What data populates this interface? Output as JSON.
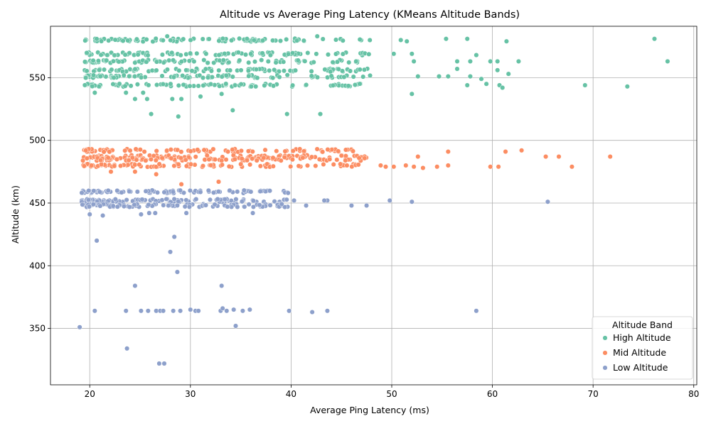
{
  "chart_data": {
    "type": "scatter",
    "title": "Altitude vs Average Ping Latency (KMeans Altitude Bands)",
    "xlabel": "Average Ping Latency (ms)",
    "ylabel": "Altitude (km)",
    "xlim": [
      16.1,
      80.3
    ],
    "ylim": [
      305,
      591
    ],
    "xticks": [
      20,
      30,
      40,
      50,
      60,
      70,
      80
    ],
    "yticks": [
      350,
      400,
      450,
      500,
      550
    ],
    "grid": true,
    "legend": {
      "title": "Altitude Band",
      "placement": "lower-right"
    },
    "series": [
      {
        "name": "High Altitude",
        "color": "#66c2a5",
        "bands": [
          580,
          569,
          563,
          556,
          551,
          544
        ],
        "main_x_range": [
          19.5,
          48
        ],
        "points": [
          {
            "x": 27.7,
            "y": 583
          },
          {
            "x": 42.6,
            "y": 583
          },
          {
            "x": 76.1,
            "y": 581
          },
          {
            "x": 55.4,
            "y": 581
          },
          {
            "x": 57.5,
            "y": 581
          },
          {
            "x": 50.9,
            "y": 580
          },
          {
            "x": 61.4,
            "y": 579
          },
          {
            "x": 51.5,
            "y": 579
          },
          {
            "x": 58.4,
            "y": 568
          },
          {
            "x": 56.5,
            "y": 563
          },
          {
            "x": 57.8,
            "y": 563
          },
          {
            "x": 59.8,
            "y": 563
          },
          {
            "x": 60.5,
            "y": 563
          },
          {
            "x": 62.6,
            "y": 563
          },
          {
            "x": 77.4,
            "y": 563
          },
          {
            "x": 56.5,
            "y": 557
          },
          {
            "x": 60.5,
            "y": 556
          },
          {
            "x": 61.6,
            "y": 553
          },
          {
            "x": 57.8,
            "y": 551
          },
          {
            "x": 58.9,
            "y": 549
          },
          {
            "x": 60.7,
            "y": 544
          },
          {
            "x": 61.0,
            "y": 542
          },
          {
            "x": 69.2,
            "y": 544
          },
          {
            "x": 73.4,
            "y": 543
          },
          {
            "x": 57.5,
            "y": 544
          },
          {
            "x": 59.4,
            "y": 545
          },
          {
            "x": 52.0,
            "y": 537
          },
          {
            "x": 20.5,
            "y": 538
          },
          {
            "x": 25.3,
            "y": 538
          },
          {
            "x": 23.6,
            "y": 538
          },
          {
            "x": 24.5,
            "y": 533
          },
          {
            "x": 25.7,
            "y": 533
          },
          {
            "x": 28.2,
            "y": 533
          },
          {
            "x": 29.1,
            "y": 533
          },
          {
            "x": 31.0,
            "y": 535
          },
          {
            "x": 33.1,
            "y": 537
          },
          {
            "x": 34.2,
            "y": 524
          },
          {
            "x": 26.1,
            "y": 521
          },
          {
            "x": 28.8,
            "y": 519
          },
          {
            "x": 39.6,
            "y": 521
          },
          {
            "x": 42.9,
            "y": 521
          },
          {
            "x": 52.2,
            "y": 563
          },
          {
            "x": 52.6,
            "y": 551
          },
          {
            "x": 54.7,
            "y": 551
          },
          {
            "x": 55.6,
            "y": 551
          },
          {
            "x": 50.2,
            "y": 569
          },
          {
            "x": 52.0,
            "y": 569
          }
        ]
      },
      {
        "name": "Mid Altitude",
        "color": "#fc8d62",
        "bands": [
          492,
          487,
          485,
          480
        ],
        "main_x_range": [
          19.3,
          47.5
        ],
        "points": [
          {
            "x": 62.9,
            "y": 492
          },
          {
            "x": 61.3,
            "y": 491
          },
          {
            "x": 55.6,
            "y": 491
          },
          {
            "x": 52.6,
            "y": 487
          },
          {
            "x": 65.3,
            "y": 487
          },
          {
            "x": 66.6,
            "y": 487
          },
          {
            "x": 71.7,
            "y": 487
          },
          {
            "x": 59.8,
            "y": 479
          },
          {
            "x": 60.6,
            "y": 479
          },
          {
            "x": 67.9,
            "y": 479
          },
          {
            "x": 55.6,
            "y": 480
          },
          {
            "x": 54.5,
            "y": 479
          },
          {
            "x": 53.1,
            "y": 478
          },
          {
            "x": 52.2,
            "y": 479
          },
          {
            "x": 51.4,
            "y": 480
          },
          {
            "x": 50.2,
            "y": 479
          },
          {
            "x": 49.4,
            "y": 479
          },
          {
            "x": 48.9,
            "y": 480
          },
          {
            "x": 29.1,
            "y": 465
          },
          {
            "x": 32.8,
            "y": 467
          },
          {
            "x": 26.6,
            "y": 473
          },
          {
            "x": 22.1,
            "y": 475
          },
          {
            "x": 24.5,
            "y": 475
          }
        ]
      },
      {
        "name": "Low Altitude",
        "color": "#8da0cb",
        "bands": [
          459,
          452,
          448
        ],
        "main_x_range": [
          19.2,
          40
        ],
        "points": [
          {
            "x": 65.5,
            "y": 451
          },
          {
            "x": 58.4,
            "y": 364
          },
          {
            "x": 52.0,
            "y": 451
          },
          {
            "x": 49.8,
            "y": 452
          },
          {
            "x": 47.5,
            "y": 448
          },
          {
            "x": 46.0,
            "y": 448
          },
          {
            "x": 43.6,
            "y": 452
          },
          {
            "x": 43.3,
            "y": 452
          },
          {
            "x": 41.5,
            "y": 448
          },
          {
            "x": 40.3,
            "y": 452
          },
          {
            "x": 36.2,
            "y": 442
          },
          {
            "x": 33.9,
            "y": 460
          },
          {
            "x": 36.0,
            "y": 459
          },
          {
            "x": 31.8,
            "y": 460
          },
          {
            "x": 20.0,
            "y": 441
          },
          {
            "x": 21.3,
            "y": 440
          },
          {
            "x": 25.1,
            "y": 441
          },
          {
            "x": 25.9,
            "y": 442
          },
          {
            "x": 26.5,
            "y": 442
          },
          {
            "x": 29.6,
            "y": 442
          },
          {
            "x": 20.7,
            "y": 420
          },
          {
            "x": 28.4,
            "y": 423
          },
          {
            "x": 28.0,
            "y": 411
          },
          {
            "x": 28.7,
            "y": 395
          },
          {
            "x": 24.5,
            "y": 384
          },
          {
            "x": 33.1,
            "y": 384
          },
          {
            "x": 20.5,
            "y": 364
          },
          {
            "x": 23.6,
            "y": 364
          },
          {
            "x": 25.1,
            "y": 364
          },
          {
            "x": 25.8,
            "y": 364
          },
          {
            "x": 26.6,
            "y": 364
          },
          {
            "x": 27.0,
            "y": 364
          },
          {
            "x": 27.3,
            "y": 364
          },
          {
            "x": 28.3,
            "y": 364
          },
          {
            "x": 29.0,
            "y": 364
          },
          {
            "x": 30.0,
            "y": 365
          },
          {
            "x": 30.5,
            "y": 364
          },
          {
            "x": 30.8,
            "y": 364
          },
          {
            "x": 33.0,
            "y": 364
          },
          {
            "x": 33.2,
            "y": 366
          },
          {
            "x": 33.6,
            "y": 364
          },
          {
            "x": 34.3,
            "y": 365
          },
          {
            "x": 35.2,
            "y": 364
          },
          {
            "x": 35.9,
            "y": 365
          },
          {
            "x": 39.8,
            "y": 364
          },
          {
            "x": 42.1,
            "y": 363
          },
          {
            "x": 43.6,
            "y": 364
          },
          {
            "x": 34.5,
            "y": 352
          },
          {
            "x": 19.0,
            "y": 351
          },
          {
            "x": 23.7,
            "y": 334
          },
          {
            "x": 26.9,
            "y": 322
          },
          {
            "x": 27.4,
            "y": 322
          }
        ]
      }
    ]
  }
}
